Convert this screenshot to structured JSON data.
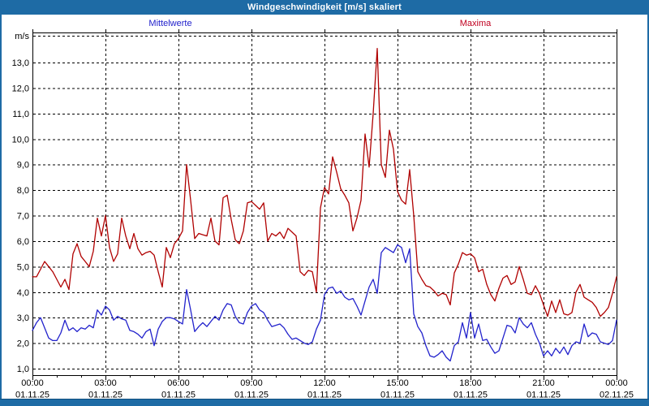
{
  "window": {
    "title": "Windgeschwindigkeit [m/s] skaliert"
  },
  "legend": {
    "mean_label": "Mittelwerte",
    "max_label": "Maxima"
  },
  "colors": {
    "titlebar": "#1e6ba5",
    "frame": "#1e6ba5",
    "mean_line": "#2222cc",
    "max_line": "#b00000",
    "mean_label_text": "#2222cc",
    "max_label_text": "#c00020",
    "grid": "#000000",
    "background": "#ffffff"
  },
  "chart_data": {
    "type": "line",
    "title": "Windgeschwindigkeit [m/s] skaliert",
    "grid": "dashed",
    "legend_position": "top",
    "y_axis": {
      "unit_label": "m/s",
      "tick_values": [
        1,
        2,
        3,
        4,
        5,
        6,
        7,
        8,
        9,
        10,
        11,
        12,
        13
      ],
      "tick_labels": [
        "1,0",
        "2,0",
        "3,0",
        "4,0",
        "5,0",
        "6,0",
        "7,0",
        "8,0",
        "9,0",
        "10,0",
        "11,0",
        "12,0",
        "13,0"
      ],
      "label_min": 1.0,
      "label_max": 13.0
    },
    "x_axis": {
      "range_hours": [
        0,
        24
      ],
      "major_tick_hours": 3,
      "minor_tick_hours": 1,
      "tick_times": [
        "00:00",
        "03:00",
        "06:00",
        "09:00",
        "12:00",
        "15:00",
        "18:00",
        "21:00",
        "00:00"
      ],
      "tick_dates": [
        "01.11.25",
        "01.11.25",
        "01.11.25",
        "01.11.25",
        "01.11.25",
        "01.11.25",
        "01.11.25",
        "01.11.25",
        "02.11.25"
      ]
    },
    "sampling_minutes": 10,
    "series": [
      {
        "name": "Mittelwerte",
        "color": "#2222cc",
        "values": [
          2.5,
          2.8,
          3.0,
          2.6,
          2.2,
          2.1,
          2.1,
          2.4,
          2.9,
          2.5,
          2.6,
          2.45,
          2.6,
          2.55,
          2.7,
          2.6,
          3.3,
          3.1,
          3.45,
          3.3,
          2.9,
          3.05,
          2.95,
          2.9,
          2.5,
          2.45,
          2.35,
          2.2,
          2.45,
          2.55,
          1.9,
          2.55,
          2.85,
          3.0,
          3.0,
          2.95,
          2.85,
          2.75,
          4.1,
          3.3,
          2.45,
          2.65,
          2.8,
          2.65,
          2.85,
          3.05,
          2.9,
          3.3,
          3.55,
          3.5,
          3.05,
          2.8,
          2.75,
          3.2,
          3.45,
          3.55,
          3.3,
          3.2,
          2.9,
          2.65,
          2.7,
          2.75,
          2.6,
          2.35,
          2.15,
          2.2,
          2.1,
          2.0,
          1.95,
          2.05,
          2.55,
          2.9,
          3.9,
          4.15,
          4.2,
          3.95,
          4.05,
          3.8,
          3.7,
          3.75,
          3.45,
          3.1,
          3.65,
          4.2,
          4.5,
          3.95,
          5.55,
          5.75,
          5.65,
          5.55,
          5.85,
          5.75,
          5.15,
          5.7,
          3.15,
          2.65,
          2.4,
          1.9,
          1.5,
          1.45,
          1.55,
          1.7,
          1.45,
          1.3,
          1.9,
          2.05,
          2.8,
          2.2,
          3.2,
          2.2,
          2.75,
          2.1,
          2.15,
          1.85,
          1.6,
          1.7,
          2.2,
          2.7,
          2.65,
          2.4,
          3.0,
          2.75,
          2.6,
          2.8,
          2.35,
          2.0,
          1.5,
          1.7,
          1.5,
          1.8,
          1.6,
          1.85,
          1.55,
          1.9,
          2.05,
          2.0,
          2.75,
          2.25,
          2.4,
          2.35,
          2.05,
          2.0,
          1.95,
          2.1,
          2.9
        ]
      },
      {
        "name": "Maxima",
        "color": "#b00000",
        "values": [
          4.6,
          4.6,
          4.9,
          5.2,
          5.0,
          4.8,
          4.5,
          4.2,
          4.5,
          4.1,
          5.5,
          5.9,
          5.4,
          5.2,
          5.0,
          5.6,
          6.9,
          6.2,
          7.0,
          5.75,
          5.2,
          5.5,
          6.9,
          6.2,
          5.7,
          6.3,
          5.7,
          5.45,
          5.55,
          5.6,
          5.45,
          4.8,
          4.2,
          5.75,
          5.35,
          5.9,
          6.1,
          6.4,
          9.0,
          7.6,
          6.1,
          6.3,
          6.25,
          6.2,
          6.9,
          6.0,
          5.85,
          7.7,
          7.8,
          6.85,
          6.05,
          5.9,
          6.4,
          7.5,
          7.55,
          7.4,
          7.25,
          7.5,
          6.0,
          6.3,
          6.2,
          6.35,
          6.1,
          6.5,
          6.35,
          6.2,
          4.8,
          4.65,
          4.85,
          4.8,
          4.0,
          7.3,
          8.1,
          7.85,
          9.3,
          8.7,
          8.05,
          7.8,
          7.5,
          6.4,
          6.9,
          7.6,
          10.2,
          8.9,
          11.0,
          13.55,
          9.0,
          8.5,
          10.35,
          9.6,
          7.95,
          7.6,
          7.45,
          8.8,
          7.0,
          4.8,
          4.5,
          4.25,
          4.2,
          4.05,
          3.85,
          3.95,
          3.9,
          3.5,
          4.75,
          5.1,
          5.55,
          5.45,
          5.5,
          5.35,
          4.8,
          4.9,
          4.3,
          3.9,
          3.65,
          4.15,
          4.55,
          4.65,
          4.3,
          4.4,
          5.0,
          4.5,
          3.95,
          3.9,
          4.25,
          3.95,
          3.5,
          3.05,
          3.65,
          3.2,
          3.7,
          3.15,
          3.1,
          3.2,
          4.0,
          4.3,
          3.8,
          3.7,
          3.6,
          3.4,
          3.05,
          3.2,
          3.4,
          3.95,
          4.6
        ]
      }
    ]
  }
}
